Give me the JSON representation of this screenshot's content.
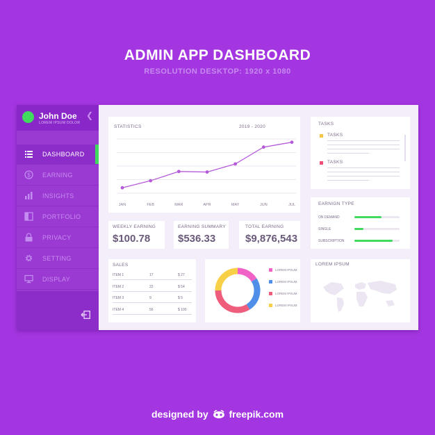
{
  "title": "ADMIN APP DASHBOARD",
  "subtitle": "RESOLUTION DESKTOP: 1920 x 1080",
  "user": {
    "name": "John Doe",
    "subtitle": "LOREM IPSUM DOLOR"
  },
  "menu": [
    {
      "label": "DASHBOARD",
      "icon": "menu-lines-icon",
      "active": true
    },
    {
      "label": "EARNING",
      "icon": "dollar-icon"
    },
    {
      "label": "INSIGHTS",
      "icon": "bar-chart-icon"
    },
    {
      "label": "PORTFOLIO",
      "icon": "portfolio-icon"
    },
    {
      "label": "PRIVACY",
      "icon": "lock-icon"
    },
    {
      "label": "SETTING",
      "icon": "gear-icon"
    },
    {
      "label": "DISPLAY",
      "icon": "monitor-icon"
    }
  ],
  "statistics": {
    "title": "STATISTICS",
    "range": "2019 - 2020",
    "chart_data": {
      "type": "line",
      "categories": [
        "JAN",
        "FEB",
        "MAR",
        "APR",
        "MAY",
        "JUN",
        "JUL"
      ],
      "series": [
        {
          "values": [
            10,
            23,
            40,
            39,
            54,
            85,
            94
          ]
        }
      ],
      "ylim": [
        0,
        100
      ],
      "grid": true,
      "color": "#b55ad8"
    }
  },
  "tasks": [
    {
      "label": "TASKS",
      "color": "#f6c445"
    },
    {
      "label": "TASKS",
      "color": "#ef4f77"
    }
  ],
  "tasks_title": "TASKS",
  "earnings": [
    {
      "label": "WEEKLY EARNING",
      "value": "$100.78"
    },
    {
      "label": "EARNING SUMMARY",
      "value": "$536.33"
    },
    {
      "label": "TOTAL EARNING",
      "value": "$9,876,543"
    }
  ],
  "earning_type": {
    "title": "EARNIGN TYPE",
    "items": [
      {
        "label": "ON DEMAND",
        "fraction": 0.6
      },
      {
        "label": "SINGLE",
        "fraction": 0.2
      },
      {
        "label": "SUBSCRIPTION",
        "fraction": 0.85
      }
    ],
    "bar_color": "#3fda5e"
  },
  "sales": {
    "title": "SALES",
    "rows": [
      {
        "item": "ITEM 1",
        "qty": "17",
        "price": "$ 27"
      },
      {
        "item": "ITEM 2",
        "qty": "22",
        "price": "$ 54"
      },
      {
        "item": "ITEM 3",
        "qty": "9",
        "price": "$ 5"
      },
      {
        "item": "ITEM 4",
        "qty": "56",
        "price": "$ 100"
      }
    ]
  },
  "donut": {
    "chart_data": {
      "type": "pie",
      "legend_position": "right",
      "slices": [
        {
          "name": "LOREM IPSUM",
          "value": 16,
          "color": "#f062c6"
        },
        {
          "name": "LOREM IPSUM",
          "value": 25,
          "color": "#4f8fe8"
        },
        {
          "name": "LOREM IPSUM",
          "value": 34,
          "color": "#ef5d7c"
        },
        {
          "name": "LOREM IPSUM",
          "value": 25,
          "color": "#f8d048"
        }
      ]
    }
  },
  "map_title": "LOREM IPSUM",
  "footer": {
    "designed": "designed by",
    "brand": "freepik.com"
  }
}
